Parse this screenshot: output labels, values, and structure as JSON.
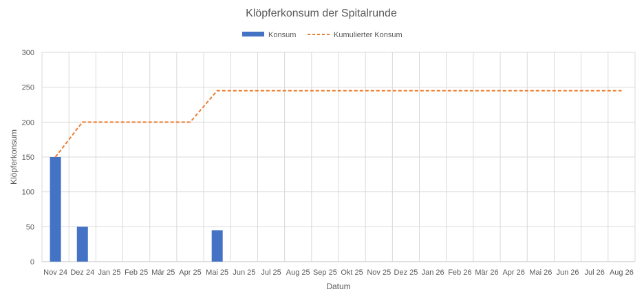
{
  "chart_data": {
    "type": "bar+line",
    "title": "Klöpferkonsum der Spitalrunde",
    "xlabel": "Datum",
    "ylabel": "Klöpferkonsum",
    "ylim": [
      0,
      300
    ],
    "yticks": [
      0,
      50,
      100,
      150,
      200,
      250,
      300
    ],
    "grid": true,
    "legend_position": "top",
    "categories": [
      "Nov 24",
      "Dez 24",
      "Jan 25",
      "Feb 25",
      "Mär 25",
      "Apr 25",
      "Mai 25",
      "Jun 25",
      "Jul 25",
      "Aug 25",
      "Sep 25",
      "Okt 25",
      "Nov 25",
      "Dez 25",
      "Jan 26",
      "Feb 26",
      "Mär 26",
      "Apr 26",
      "Mai 26",
      "Jun 26",
      "Jul 26",
      "Aug 26"
    ],
    "series": [
      {
        "name": "Konsum",
        "type": "bar",
        "color": "#4472C4",
        "values": [
          150,
          50,
          0,
          0,
          0,
          0,
          45,
          0,
          0,
          0,
          0,
          0,
          0,
          0,
          0,
          0,
          0,
          0,
          0,
          0,
          0,
          0
        ]
      },
      {
        "name": "Kumulierter Konsum",
        "type": "line",
        "style": "dashed",
        "color": "#ED7D31",
        "values": [
          150,
          200,
          200,
          200,
          200,
          200,
          245,
          245,
          245,
          245,
          245,
          245,
          245,
          245,
          245,
          245,
          245,
          245,
          245,
          245,
          245,
          245
        ]
      }
    ]
  }
}
